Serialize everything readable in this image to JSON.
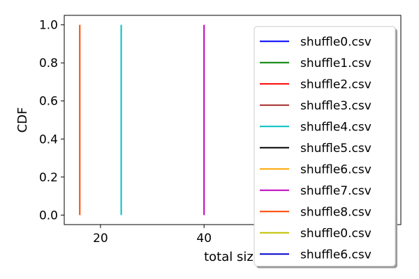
{
  "chart_data": {
    "type": "line",
    "xlabel": "total size",
    "ylabel": "CDF",
    "xlim": [
      13,
      78
    ],
    "ylim": [
      -0.05,
      1.05
    ],
    "xticks": [
      20,
      40
    ],
    "yticks": [
      0.0,
      0.2,
      0.4,
      0.6,
      0.8,
      1.0
    ],
    "ytick_labels": [
      "0.0",
      "0.2",
      "0.4",
      "0.6",
      "0.8",
      "1.0"
    ],
    "legend_position": "upper-right",
    "grid": false,
    "series": [
      {
        "name": "shuffle0.csv",
        "color": "#0000ff",
        "x": [],
        "y": []
      },
      {
        "name": "shuffle1.csv",
        "color": "#008000",
        "x": [],
        "y": []
      },
      {
        "name": "shuffle2.csv",
        "color": "#ff0000",
        "x": [],
        "y": []
      },
      {
        "name": "shuffle3.csv",
        "color": "#a52a2a",
        "x": [],
        "y": []
      },
      {
        "name": "shuffle4.csv",
        "color": "#00bfbf",
        "x": [
          24,
          24
        ],
        "y": [
          0.0,
          1.0
        ]
      },
      {
        "name": "shuffle5.csv",
        "color": "#000000",
        "x": [],
        "y": []
      },
      {
        "name": "shuffle6.csv",
        "color": "#ffa500",
        "x": [],
        "y": []
      },
      {
        "name": "shuffle7.csv",
        "color": "#bf00bf",
        "x": [
          40,
          40
        ],
        "y": [
          0.0,
          1.0
        ]
      },
      {
        "name": "shuffle8.csv",
        "color": "#ff4500",
        "x": [
          16,
          16
        ],
        "y": [
          0.0,
          1.0
        ]
      },
      {
        "name": "shuffle0.csv",
        "color": "#bfbf00",
        "x": [],
        "y": []
      },
      {
        "name": "shuffle6.csv",
        "color": "#0000cd",
        "x": [],
        "y": []
      }
    ]
  }
}
